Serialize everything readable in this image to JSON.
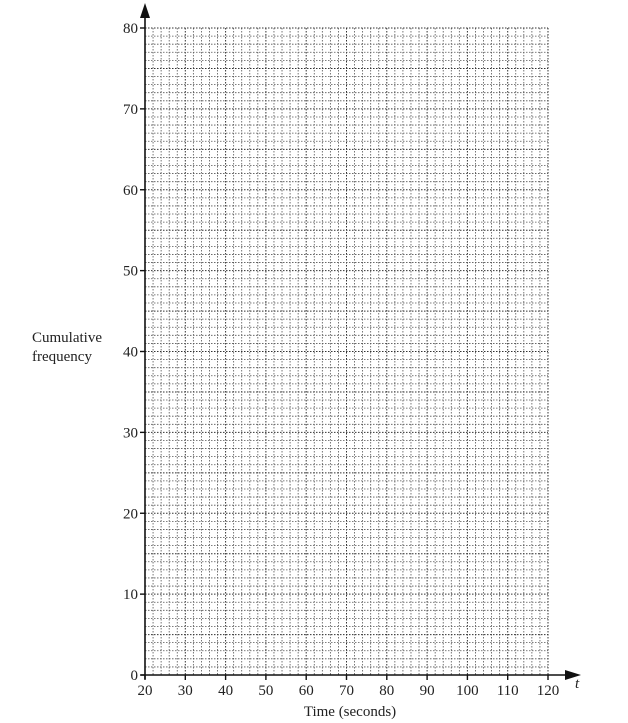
{
  "chart_data": {
    "type": "line",
    "title": "",
    "xlabel": "Time (seconds)",
    "ylabel": "Cumulative frequency",
    "x_axis_symbol": "t",
    "xlim": [
      20,
      120
    ],
    "ylim": [
      0,
      80
    ],
    "x_ticks": [
      20,
      30,
      40,
      50,
      60,
      70,
      80,
      90,
      100,
      110,
      120
    ],
    "y_ticks": [
      0,
      10,
      20,
      30,
      40,
      50,
      60,
      70,
      80
    ],
    "x_minor_step": 2,
    "y_minor_step": 1,
    "grid": true,
    "series": []
  }
}
